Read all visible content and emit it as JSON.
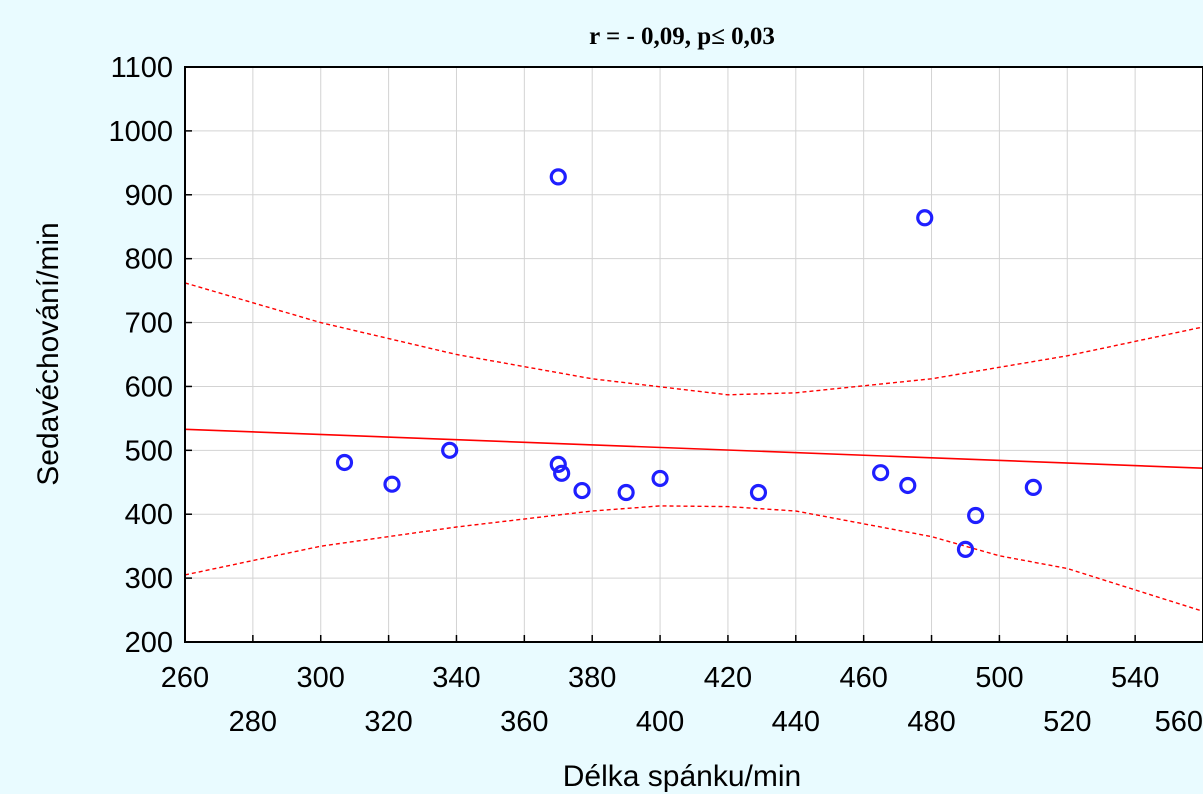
{
  "chart_data": {
    "type": "scatter",
    "title": "r = - 0,09, p≤ 0,03",
    "xlabel": "Délka spánku/min",
    "ylabel": "Sedavéchování/min",
    "xlim": [
      260,
      560
    ],
    "ylim": [
      200,
      1100
    ],
    "x_ticks": [
      260,
      280,
      300,
      320,
      340,
      360,
      380,
      400,
      420,
      440,
      460,
      480,
      500,
      520,
      540,
      560
    ],
    "y_ticks": [
      200,
      300,
      400,
      500,
      600,
      700,
      800,
      900,
      1000,
      1100
    ],
    "grid": true,
    "series": [
      {
        "kind": "points",
        "marker": "circle-open",
        "color": "#1f1fff",
        "points": [
          [
            307,
            481
          ],
          [
            321,
            447
          ],
          [
            338,
            500
          ],
          [
            370,
            928
          ],
          [
            370,
            478
          ],
          [
            371,
            464
          ],
          [
            377,
            437
          ],
          [
            390,
            434
          ],
          [
            400,
            456
          ],
          [
            429,
            434
          ],
          [
            465,
            465
          ],
          [
            473,
            445
          ],
          [
            478,
            864
          ],
          [
            490,
            345
          ],
          [
            493,
            398
          ],
          [
            510,
            442
          ]
        ]
      },
      {
        "kind": "regression-line",
        "color": "#ff0000",
        "points": [
          [
            260,
            533
          ],
          [
            560,
            472
          ]
        ]
      },
      {
        "kind": "confidence-band-upper",
        "color": "#ff0000",
        "dashed": true,
        "points": [
          [
            260,
            762
          ],
          [
            300,
            700
          ],
          [
            340,
            650
          ],
          [
            380,
            612
          ],
          [
            420,
            587
          ],
          [
            440,
            590
          ],
          [
            480,
            612
          ],
          [
            520,
            648
          ],
          [
            560,
            693
          ]
        ]
      },
      {
        "kind": "confidence-band-lower",
        "color": "#ff0000",
        "dashed": true,
        "points": [
          [
            260,
            305
          ],
          [
            300,
            350
          ],
          [
            340,
            380
          ],
          [
            380,
            405
          ],
          [
            400,
            413
          ],
          [
            420,
            412
          ],
          [
            440,
            405
          ],
          [
            480,
            365
          ],
          [
            500,
            335
          ],
          [
            520,
            315
          ],
          [
            560,
            248
          ]
        ]
      }
    ]
  }
}
